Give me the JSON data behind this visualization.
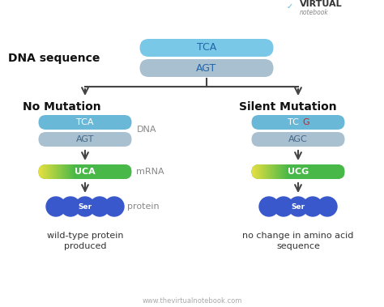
{
  "bg_color": "#ffffff",
  "website": "www.thevirtualnotebook.com",
  "dna_label": "DNA sequence",
  "top_strand1": "TCA",
  "top_strand2": "AGT",
  "left_title": "No Mutation",
  "right_title": "Silent Mutation",
  "left_dna1": "TCA",
  "left_dna2": "AGT",
  "left_mrna": "UCA",
  "left_protein_label": "Ser",
  "left_caption": "wild-type protein\nproduced",
  "right_dna1_normal": "TC",
  "right_dna1_mutant": "G",
  "right_dna2": "AGC",
  "right_mrna": "UCG",
  "right_protein_label": "Ser",
  "right_caption": "no change in amino acid\nsequence",
  "dna_label_side": "DNA",
  "mrna_label_side": "mRNA",
  "protein_label_side": "protein",
  "color_blue_top": "#7ac8e8",
  "color_blue_top_fade": "#b8dff0",
  "color_blue_strand1": "#6ab8d8",
  "color_gray_strand2": "#a8c0d0",
  "color_yellow": "#e8e040",
  "color_green": "#48b848",
  "color_circle_blue": "#3858cc",
  "color_red_letter": "#cc2222",
  "arrow_color": "#444444",
  "logo_v_color": "#5ab8d8",
  "logo_text_color": "#333333"
}
